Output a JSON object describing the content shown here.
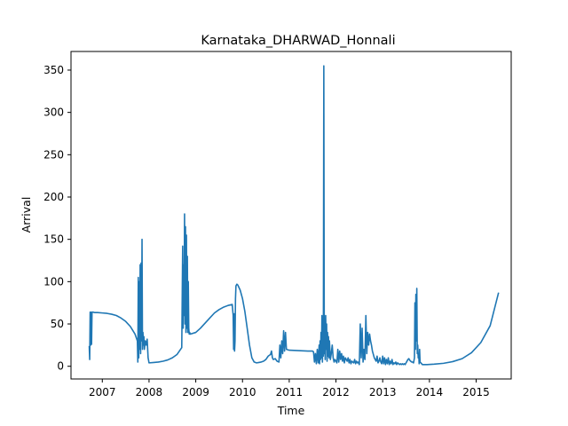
{
  "chart_data": {
    "type": "line",
    "title": "Karnataka_DHARWAD_Honnali",
    "xlabel": "Time",
    "ylabel": "Arrival",
    "x_ticks": [
      "2007",
      "2008",
      "2009",
      "2010",
      "2011",
      "2012",
      "2013",
      "2014",
      "2015"
    ],
    "y_ticks": [
      0,
      50,
      100,
      150,
      200,
      250,
      300,
      350
    ],
    "xlim": [
      2006.33,
      2015.75
    ],
    "ylim": [
      -15,
      372
    ],
    "grid": false,
    "legend": "none",
    "line_color": "#1f77b4",
    "series": [
      {
        "x": [
          2006.72,
          2006.73,
          2006.74,
          2006.75,
          2006.76,
          2006.77,
          2006.78,
          2006.8,
          2006.83,
          2006.9,
          2007.0,
          2007.1,
          2007.2,
          2007.3,
          2007.4,
          2007.5,
          2007.6,
          2007.7,
          2007.75,
          2007.76,
          2007.77,
          2007.78,
          2007.79,
          2007.8,
          2007.81,
          2007.82,
          2007.83,
          2007.84,
          2007.85,
          2007.86,
          2007.87,
          2007.88,
          2007.89,
          2007.9,
          2007.92,
          2007.94,
          2007.96,
          2007.98,
          2008.0,
          2008.1,
          2008.2,
          2008.3,
          2008.4,
          2008.5,
          2008.6,
          2008.7,
          2008.72,
          2008.73,
          2008.74,
          2008.75,
          2008.76,
          2008.77,
          2008.78,
          2008.79,
          2008.8,
          2008.81,
          2008.82,
          2008.83,
          2008.84,
          2008.85,
          2008.86,
          2008.87,
          2008.88,
          2009.0,
          2009.1,
          2009.2,
          2009.3,
          2009.4,
          2009.5,
          2009.6,
          2009.7,
          2009.78,
          2009.8,
          2009.81,
          2009.82,
          2009.83,
          2009.84,
          2009.85,
          2009.86,
          2009.88,
          2009.9,
          2009.95,
          2010.0,
          2010.05,
          2010.1,
          2010.15,
          2010.2,
          2010.25,
          2010.3,
          2010.35,
          2010.4,
          2010.45,
          2010.5,
          2010.55,
          2010.6,
          2010.62,
          2010.64,
          2010.66,
          2010.7,
          2010.74,
          2010.78,
          2010.8,
          2010.82,
          2010.84,
          2010.86,
          2010.88,
          2010.9,
          2010.92,
          2010.94,
          2011.0,
          2011.2,
          2011.4,
          2011.5,
          2011.52,
          2011.54,
          2011.56,
          2011.58,
          2011.6,
          2011.62,
          2011.64,
          2011.65,
          2011.66,
          2011.67,
          2011.68,
          2011.69,
          2011.7,
          2011.71,
          2011.72,
          2011.73,
          2011.74,
          2011.75,
          2011.76,
          2011.77,
          2011.78,
          2011.79,
          2011.8,
          2011.81,
          2011.82,
          2011.83,
          2011.84,
          2011.85,
          2011.86,
          2011.87,
          2011.88,
          2011.9,
          2011.92,
          2011.94,
          2011.96,
          2011.98,
          2012.0,
          2012.02,
          2012.04,
          2012.06,
          2012.08,
          2012.1,
          2012.12,
          2012.14,
          2012.16,
          2012.18,
          2012.2,
          2012.22,
          2012.24,
          2012.26,
          2012.28,
          2012.3,
          2012.32,
          2012.34,
          2012.36,
          2012.38,
          2012.4,
          2012.42,
          2012.44,
          2012.46,
          2012.48,
          2012.5,
          2012.52,
          2012.54,
          2012.56,
          2012.58,
          2012.6,
          2012.62,
          2012.64,
          2012.66,
          2012.68,
          2012.7,
          2012.72,
          2012.74,
          2012.76,
          2012.78,
          2012.8,
          2012.82,
          2012.84,
          2012.86,
          2012.88,
          2012.9,
          2012.92,
          2012.94,
          2012.96,
          2012.98,
          2013.0,
          2013.02,
          2013.04,
          2013.06,
          2013.08,
          2013.1,
          2013.12,
          2013.14,
          2013.16,
          2013.18,
          2013.2,
          2013.22,
          2013.24,
          2013.26,
          2013.28,
          2013.3,
          2013.32,
          2013.34,
          2013.36,
          2013.38,
          2013.4,
          2013.42,
          2013.44,
          2013.46,
          2013.48,
          2013.5,
          2013.52,
          2013.54,
          2013.56,
          2013.58,
          2013.6,
          2013.62,
          2013.64,
          2013.66,
          2013.68,
          2013.69,
          2013.7,
          2013.71,
          2013.72,
          2013.73,
          2013.74,
          2013.75,
          2013.76,
          2013.77,
          2013.78,
          2013.79,
          2013.8,
          2013.85,
          2013.95,
          2014.1,
          2014.3,
          2014.5,
          2014.7,
          2014.9,
          2015.1,
          2015.3,
          2015.48
        ],
        "y": [
          24,
          8,
          64,
          25,
          64,
          26,
          64,
          64,
          63.5,
          63.5,
          63,
          62.5,
          61.5,
          60,
          57,
          53,
          47,
          38,
          30,
          5,
          105,
          10,
          100,
          20,
          120,
          15,
          122,
          30,
          150,
          20,
          40,
          25,
          35,
          20,
          30,
          25,
          32,
          10,
          4,
          4.5,
          5,
          6,
          7.5,
          10,
          14,
          22,
          142,
          45,
          120,
          60,
          180,
          50,
          165,
          40,
          155,
          45,
          130,
          40,
          100,
          45,
          38,
          40,
          38,
          40,
          45,
          51,
          57,
          63,
          67,
          70,
          72,
          73,
          60,
          20,
          62,
          18,
          30,
          80,
          95,
          97,
          96,
          90,
          80,
          65,
          45,
          25,
          10,
          5,
          4,
          4.5,
          5,
          6,
          8,
          12,
          14,
          18,
          10,
          8,
          9,
          6,
          5,
          25,
          10,
          30,
          15,
          42,
          18,
          40,
          20,
          19,
          18.5,
          18,
          18,
          17,
          5,
          15,
          3,
          20,
          4,
          25,
          3,
          30,
          8,
          40,
          10,
          60,
          5,
          45,
          12,
          355,
          15,
          40,
          8,
          60,
          20,
          50,
          6,
          40,
          12,
          35,
          10,
          30,
          20,
          8,
          15,
          25,
          10,
          5,
          8,
          6,
          4,
          20,
          5,
          18,
          8,
          15,
          6,
          12,
          4,
          10,
          8,
          6,
          10,
          4,
          8,
          3,
          6,
          5,
          4,
          8,
          3,
          6,
          4,
          5,
          2,
          50,
          10,
          45,
          5,
          20,
          8,
          60,
          15,
          40,
          25,
          38,
          30,
          25,
          18,
          14,
          10,
          8,
          6,
          12,
          4,
          6,
          10,
          5,
          3,
          12,
          3,
          10,
          2,
          8,
          3,
          10,
          2,
          6,
          3,
          8,
          2,
          4,
          3,
          5,
          2,
          4,
          3,
          2,
          3,
          2,
          3,
          2,
          3,
          2,
          4,
          6,
          8,
          9,
          7,
          6,
          5,
          5,
          4,
          10,
          75,
          20,
          85,
          30,
          92,
          15,
          25,
          10,
          15,
          3,
          20,
          5,
          2,
          2,
          2.5,
          3.5,
          5.5,
          9,
          16,
          28,
          48,
          87
        ]
      }
    ]
  }
}
